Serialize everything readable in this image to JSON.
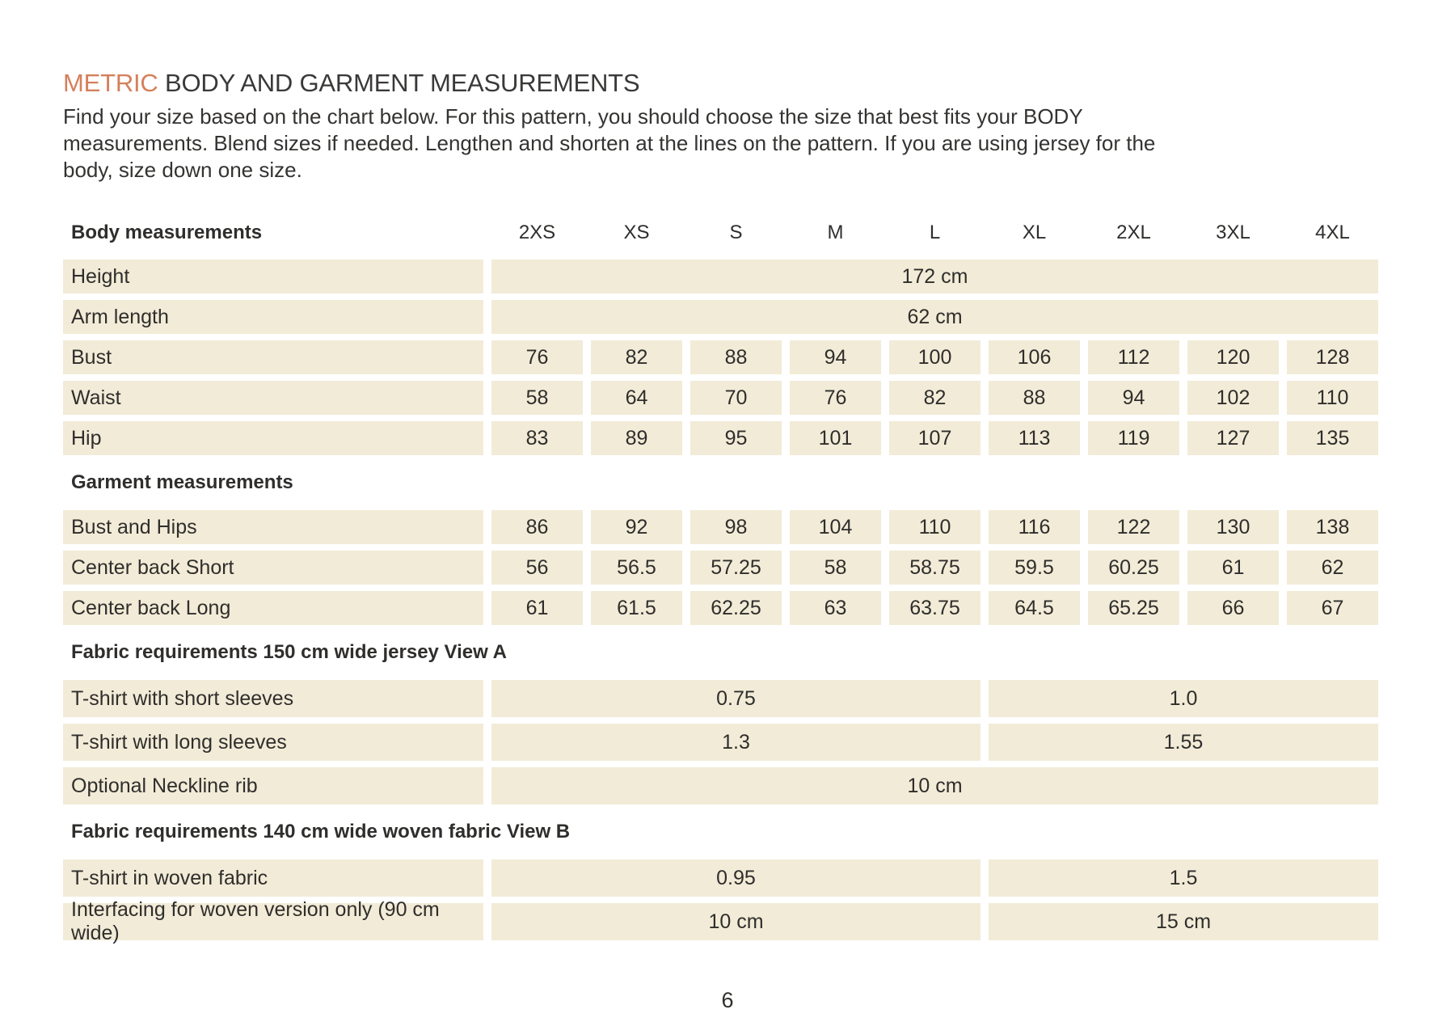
{
  "colors": {
    "accent": "#d5805c",
    "cell_bg": "#f2ebd7",
    "text": "#2f2e2c"
  },
  "page": {
    "title_accent": "METRIC",
    "title_rest": " BODY AND GARMENT MEASUREMENTS",
    "intro_lines": [
      "Find your size based on the chart below. For this pattern, you should choose the size that best fits your BODY",
      "measurements. Blend sizes if needed. Lengthen and shorten at the lines on the pattern. If you are using jersey for the",
      "body, size down one size."
    ],
    "page_number": "6"
  },
  "table": {
    "header_label": "Body measurements",
    "sizes": [
      "2XS",
      "XS",
      "S",
      "M",
      "L",
      "XL",
      "2XL",
      "3XL",
      "4XL"
    ],
    "rows": [
      {
        "type": "span",
        "label": "Height",
        "value": "172 cm"
      },
      {
        "type": "span",
        "label": "Arm length",
        "value": "62 cm"
      },
      {
        "type": "values",
        "label": "Bust",
        "values": [
          "76",
          "82",
          "88",
          "94",
          "100",
          "106",
          "112",
          "120",
          "128"
        ]
      },
      {
        "type": "values",
        "label": "Waist",
        "values": [
          "58",
          "64",
          "70",
          "76",
          "82",
          "88",
          "94",
          "102",
          "110"
        ]
      },
      {
        "type": "values",
        "label": "Hip",
        "values": [
          "83",
          "89",
          "95",
          "101",
          "107",
          "113",
          "119",
          "127",
          "135"
        ]
      },
      {
        "type": "section",
        "label": "Garment measurements"
      },
      {
        "type": "values",
        "label": "Bust and Hips",
        "values": [
          "86",
          "92",
          "98",
          "104",
          "110",
          "116",
          "122",
          "130",
          "138"
        ]
      },
      {
        "type": "values",
        "label": "Center back Short",
        "values": [
          "56",
          "56.5",
          "57.25",
          "58",
          "58.75",
          "59.5",
          "60.25",
          "61",
          "62"
        ]
      },
      {
        "type": "values",
        "label": "Center back Long",
        "values": [
          "61",
          "61.5",
          "62.25",
          "63",
          "63.75",
          "64.5",
          "65.25",
          "66",
          "67"
        ]
      },
      {
        "type": "section",
        "label": "Fabric requirements 150 cm wide jersey View A",
        "tall": true
      },
      {
        "type": "split",
        "label": "T-shirt with short sleeves",
        "values": [
          "0.75",
          "1.0"
        ],
        "tall": true
      },
      {
        "type": "split",
        "label": "T-shirt with long sleeves",
        "values": [
          "1.3",
          "1.55"
        ],
        "tall": true
      },
      {
        "type": "span",
        "label": "Optional Neckline rib",
        "value": "10 cm",
        "tall": true
      },
      {
        "type": "section",
        "label": "Fabric requirements 140 cm wide woven fabric View B",
        "tall": true
      },
      {
        "type": "split",
        "label": "T-shirt in woven fabric",
        "values": [
          "0.95",
          "1.5"
        ],
        "tall": true
      },
      {
        "type": "split",
        "label": "Interfacing for woven version only (90 cm wide)",
        "values": [
          "10 cm",
          "15 cm"
        ],
        "tall": true
      }
    ]
  }
}
